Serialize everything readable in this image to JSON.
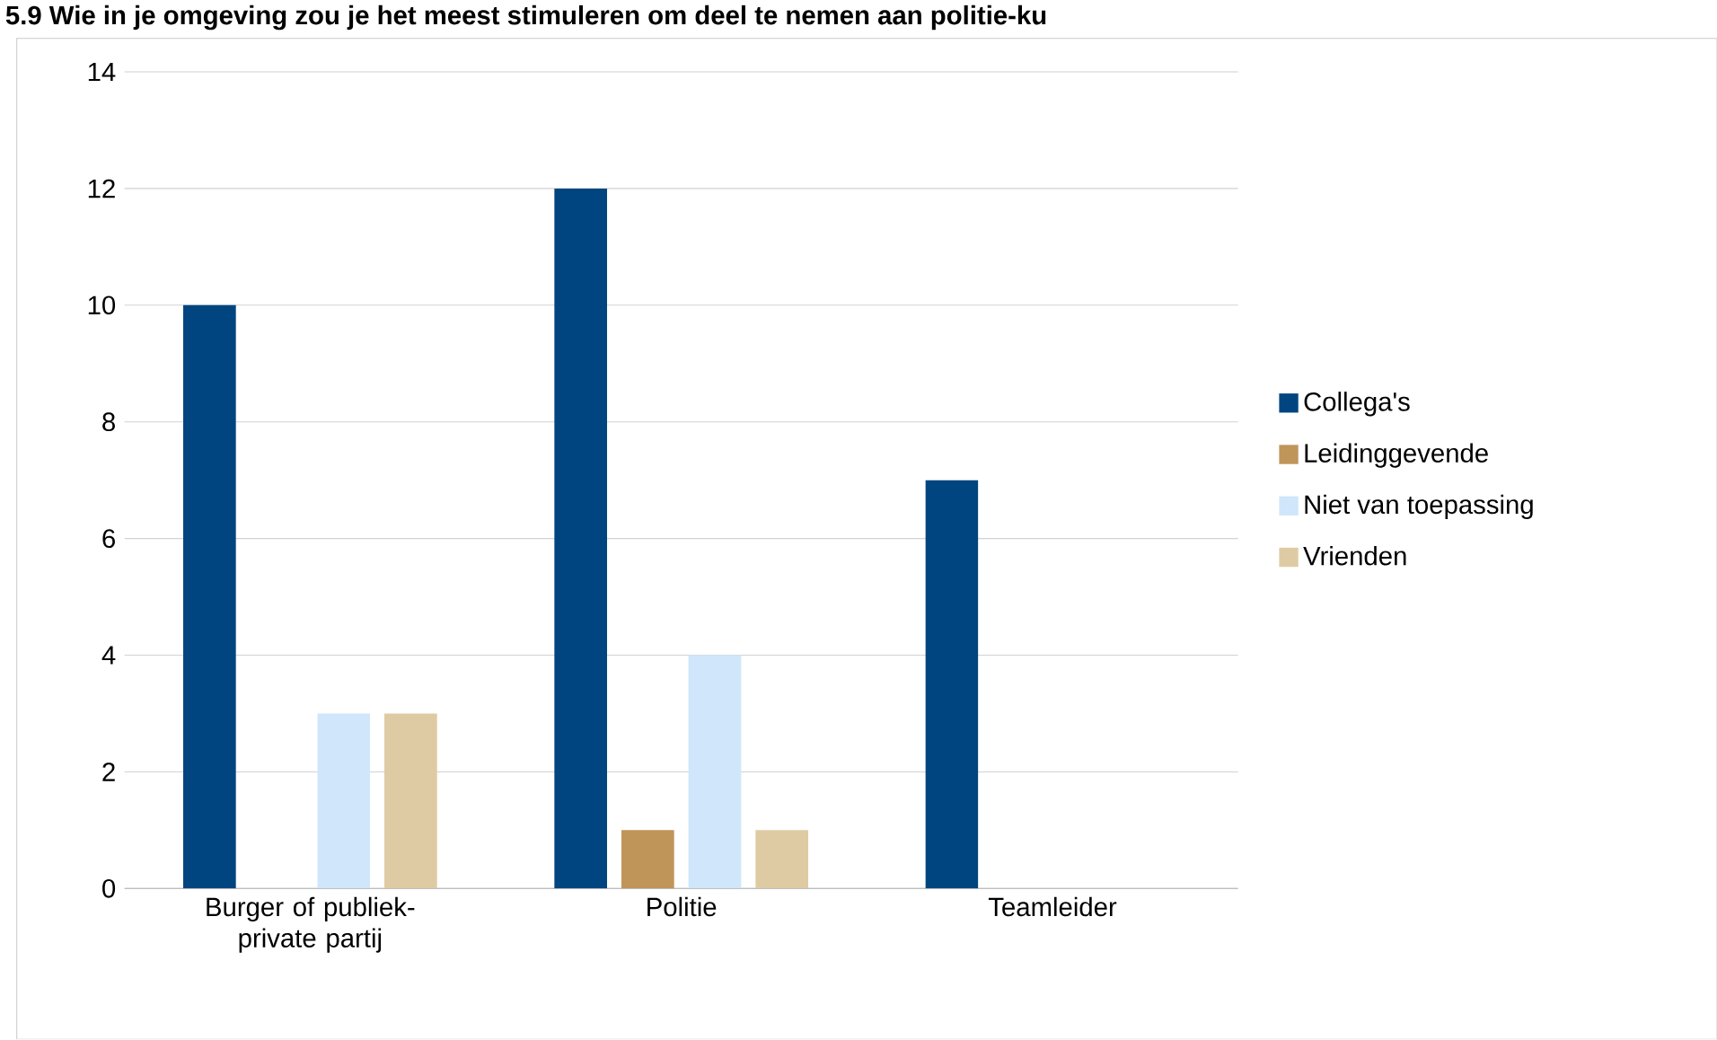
{
  "chart_data": {
    "type": "bar",
    "title": "5.9 Wie in je omgeving zou je het meest stimuleren om deel te nemen aan politie-ku",
    "categories": [
      "Burger of publiek-private partij",
      "Politie",
      "Teamleider"
    ],
    "series": [
      {
        "name": "Collega's",
        "color": "#00457f",
        "values": [
          10,
          12,
          7
        ]
      },
      {
        "name": "Leidinggevende",
        "color": "#c0955a",
        "values": [
          0,
          1,
          0
        ]
      },
      {
        "name": "Niet van toepassing",
        "color": "#cfe6fb",
        "values": [
          3,
          4,
          0
        ]
      },
      {
        "name": "Vrienden",
        "color": "#decba4",
        "values": [
          3,
          1,
          0
        ]
      }
    ],
    "ylim": [
      0,
      14
    ],
    "yticks": [
      0,
      2,
      4,
      6,
      8,
      10,
      12,
      14
    ],
    "grid": "y",
    "legend": "right"
  }
}
